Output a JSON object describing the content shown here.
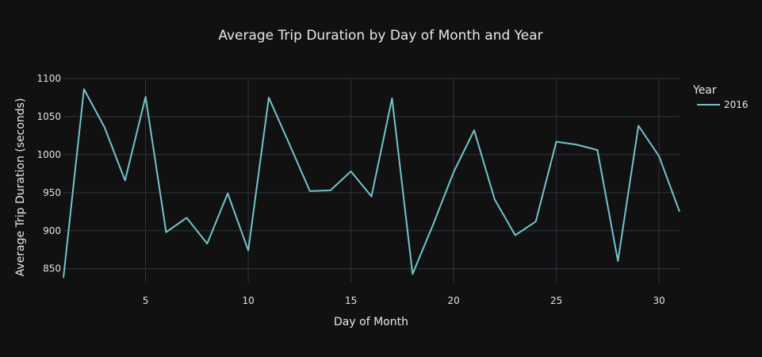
{
  "chart_data": {
    "type": "line",
    "title": "Average Trip Duration by Day of Month and Year",
    "xlabel": "Day of Month",
    "ylabel": "Average Trip Duration (seconds)",
    "xlim": [
      1,
      31
    ],
    "ylim": [
      832,
      1100
    ],
    "x_ticks": [
      5,
      10,
      15,
      20,
      25,
      30
    ],
    "y_ticks": [
      850,
      900,
      950,
      1000,
      1050,
      1100
    ],
    "grid": true,
    "legend": {
      "title": "Year",
      "placement": "top-right"
    },
    "series": [
      {
        "name": "2016",
        "color": "#72c4cc",
        "x": [
          1,
          2,
          3,
          4,
          5,
          6,
          7,
          8,
          9,
          10,
          11,
          12,
          13,
          14,
          15,
          16,
          17,
          18,
          19,
          20,
          21,
          22,
          23,
          24,
          25,
          26,
          27,
          28,
          29,
          30,
          31
        ],
        "values": [
          838,
          1086,
          1036,
          966,
          1076,
          898,
          917,
          883,
          949,
          874,
          1075,
          1014,
          952,
          953,
          978,
          945,
          1074,
          843,
          908,
          977,
          1032,
          941,
          894,
          912,
          1017,
          1013,
          1006,
          860,
          1038,
          998,
          925
        ]
      }
    ]
  },
  "colors": {
    "background": "#111111",
    "grid": "#2c3540",
    "text": "#e8e8e8"
  }
}
